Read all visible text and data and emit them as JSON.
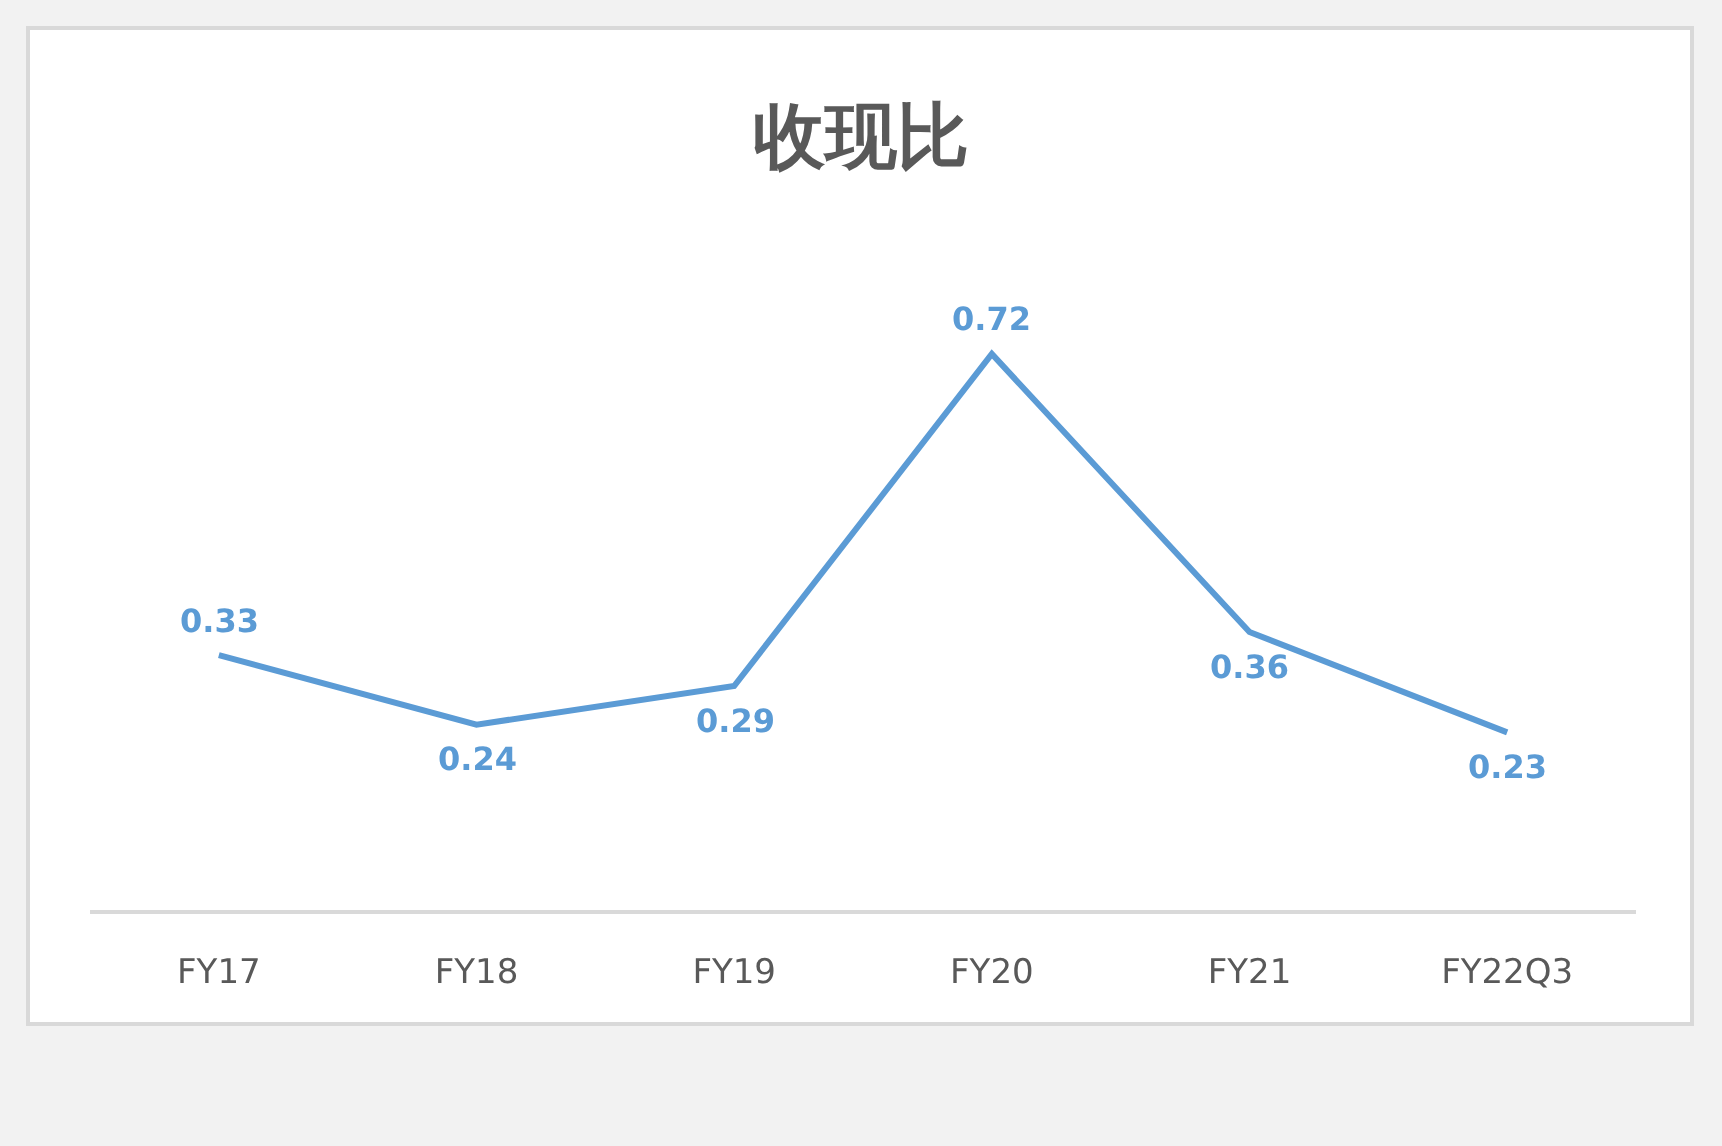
{
  "chart_data": {
    "type": "line",
    "title": "收现比",
    "categories": [
      "FY17",
      "FY18",
      "FY19",
      "FY20",
      "FY21",
      "FY22Q3"
    ],
    "series": [
      {
        "color": "#5b9bd5",
        "values": [
          0.33,
          0.24,
          0.29,
          0.72,
          0.36,
          0.23
        ]
      }
    ],
    "data_labels": true,
    "marker": "none",
    "line_style": "solid",
    "tick_labels": "x"
  }
}
